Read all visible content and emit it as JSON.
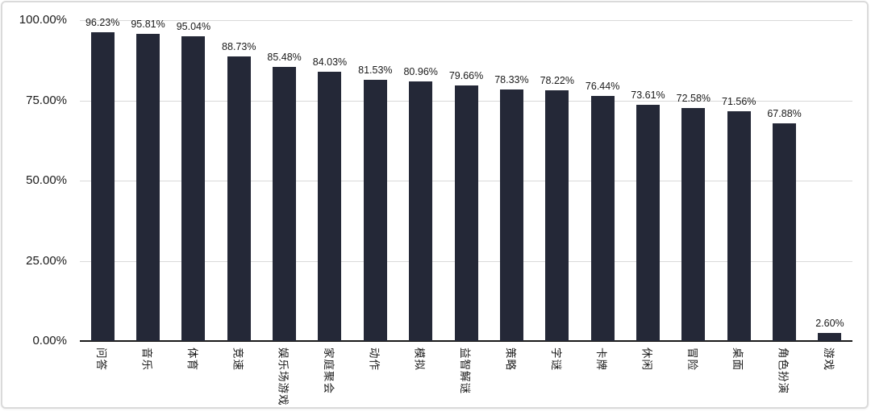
{
  "chart_data": {
    "type": "bar",
    "title": "",
    "xlabel": "",
    "ylabel": "",
    "ylim": [
      0,
      100
    ],
    "grid": true,
    "legend": "none",
    "categories": [
      "问答",
      "音乐",
      "体育",
      "竞速",
      "娱乐场游戏",
      "家庭聚会",
      "动作",
      "模拟",
      "益智解谜",
      "策略",
      "字谜",
      "卡牌",
      "休闲",
      "冒险",
      "桌面",
      "角色扮演",
      "游戏"
    ],
    "values": [
      96.23,
      95.81,
      95.04,
      88.73,
      85.48,
      84.03,
      81.53,
      80.96,
      79.66,
      78.33,
      78.22,
      76.44,
      73.61,
      72.58,
      71.56,
      67.88,
      2.6
    ],
    "value_labels": [
      "96.23%",
      "95.81%",
      "95.04%",
      "88.73%",
      "85.48%",
      "84.03%",
      "81.53%",
      "80.96%",
      "79.66%",
      "78.33%",
      "78.22%",
      "76.44%",
      "73.61%",
      "72.58%",
      "71.56%",
      "67.88%",
      "2.60%"
    ],
    "yticks": [
      {
        "label": "0.00%",
        "value": 0
      },
      {
        "label": "25.00%",
        "value": 25
      },
      {
        "label": "50.00%",
        "value": 50
      },
      {
        "label": "75.00%",
        "value": 75
      },
      {
        "label": "100.00%",
        "value": 100
      }
    ]
  },
  "colors": {
    "bar": "#242837",
    "gridline": "#d9d9d9",
    "axis": "#1a1a1a",
    "text": "#1a1a1a",
    "card_border": "#dadada",
    "background": "#ffffff"
  }
}
